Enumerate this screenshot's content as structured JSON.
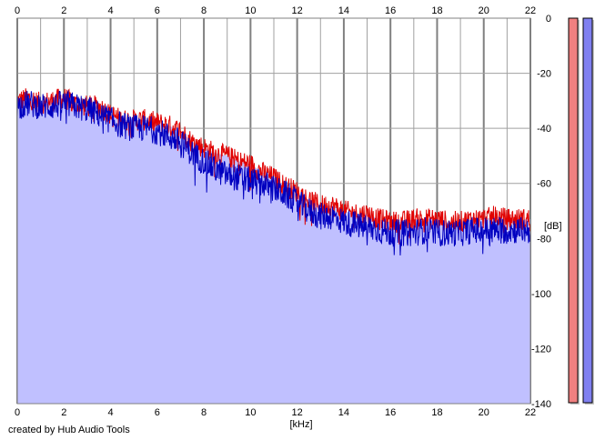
{
  "chart_data": {
    "type": "area",
    "x_axis": {
      "label": "[kHz]",
      "range": [
        0,
        22
      ],
      "ticks": [
        "0",
        "2",
        "4",
        "6",
        "8",
        "10",
        "12",
        "14",
        "16",
        "18",
        "20",
        "22"
      ]
    },
    "y_axis": {
      "label": "[dB]",
      "range": [
        -140,
        0
      ],
      "ticks": [
        "0",
        "-20",
        "-40",
        "-60",
        "-80",
        "-100",
        "-120",
        "-140"
      ]
    },
    "grid": true,
    "series": [
      {
        "color": "#e00000",
        "x": [
          0.0,
          0.5,
          1.0,
          1.5,
          2.0,
          2.5,
          3.0,
          3.5,
          4.0,
          4.5,
          5.0,
          5.5,
          6.0,
          6.5,
          7.0,
          7.5,
          8.0,
          8.5,
          9.0,
          9.5,
          10.0,
          10.5,
          11.0,
          11.5,
          12.0,
          12.5,
          13.0,
          13.5,
          14.0,
          14.5,
          15.0,
          15.5,
          16.0,
          16.5,
          17.0,
          17.5,
          18.0,
          18.5,
          19.0,
          19.5,
          20.0,
          20.5,
          21.0,
          21.5,
          22.0
        ],
        "values": [
          -30,
          -29,
          -31,
          -30,
          -29,
          -31,
          -32,
          -32,
          -35,
          -37,
          -37,
          -37,
          -38,
          -39,
          -41,
          -45,
          -47,
          -49,
          -50,
          -52,
          -53,
          -56,
          -58,
          -61,
          -63,
          -66,
          -68,
          -68,
          -70,
          -71,
          -71,
          -73,
          -74,
          -74,
          -73,
          -73,
          -73,
          -74,
          -74,
          -73,
          -73,
          -72,
          -73,
          -73,
          -73
        ]
      },
      {
        "color": "#0000c0",
        "x": [
          0.0,
          0.5,
          1.0,
          1.5,
          2.0,
          2.5,
          3.0,
          3.5,
          4.0,
          4.5,
          5.0,
          5.5,
          6.0,
          6.5,
          7.0,
          7.5,
          8.0,
          8.5,
          9.0,
          9.5,
          10.0,
          10.5,
          11.0,
          11.5,
          12.0,
          12.5,
          13.0,
          13.5,
          14.0,
          14.5,
          15.0,
          15.5,
          16.0,
          16.5,
          17.0,
          17.5,
          18.0,
          18.5,
          19.0,
          19.5,
          20.0,
          20.5,
          21.0,
          21.5,
          22.0
        ],
        "values": [
          -32,
          -31,
          -32,
          -32,
          -31,
          -32,
          -33,
          -35,
          -37,
          -39,
          -40,
          -40,
          -41,
          -43,
          -45,
          -49,
          -52,
          -55,
          -57,
          -58,
          -59,
          -60,
          -62,
          -64,
          -67,
          -70,
          -72,
          -72,
          -74,
          -75,
          -76,
          -77,
          -78,
          -78,
          -78,
          -77,
          -78,
          -78,
          -78,
          -77,
          -77,
          -77,
          -77,
          -77,
          -77
        ]
      }
    ],
    "level_meters": [
      {
        "color": "#f08080",
        "level": 1.0
      },
      {
        "color": "#8080f0",
        "level": 1.0
      }
    ]
  },
  "caption": "created by Hub Audio Tools",
  "colors": {
    "area_fill": "#c0c0ff",
    "grid_major": "#808080",
    "grid_minor": "#a0a0a0",
    "frame": "#808080"
  }
}
